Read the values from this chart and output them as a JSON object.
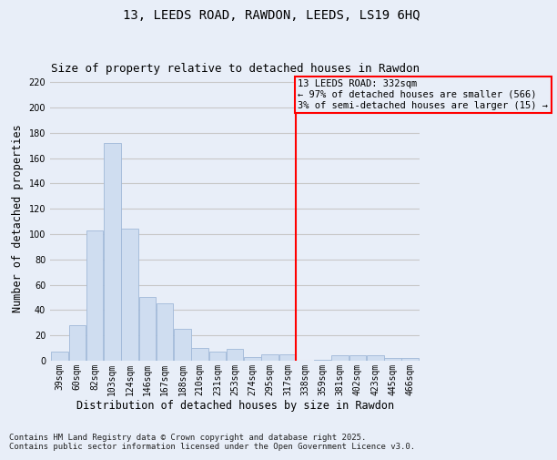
{
  "title1": "13, LEEDS ROAD, RAWDON, LEEDS, LS19 6HQ",
  "title2": "Size of property relative to detached houses in Rawdon",
  "xlabel": "Distribution of detached houses by size in Rawdon",
  "ylabel": "Number of detached properties",
  "footer": "Contains HM Land Registry data © Crown copyright and database right 2025.\nContains public sector information licensed under the Open Government Licence v3.0.",
  "bin_labels": [
    "39sqm",
    "60sqm",
    "82sqm",
    "103sqm",
    "124sqm",
    "146sqm",
    "167sqm",
    "188sqm",
    "210sqm",
    "231sqm",
    "253sqm",
    "274sqm",
    "295sqm",
    "317sqm",
    "338sqm",
    "359sqm",
    "381sqm",
    "402sqm",
    "423sqm",
    "445sqm",
    "466sqm"
  ],
  "bar_heights": [
    7,
    28,
    103,
    172,
    104,
    50,
    45,
    25,
    10,
    7,
    9,
    3,
    5,
    5,
    0,
    1,
    4,
    4,
    4,
    2,
    2
  ],
  "bar_color": "#cfddf0",
  "bar_edge_color": "#a0b8d8",
  "bin_width": 21,
  "property_value": 332,
  "property_line_color": "red",
  "annotation_line1": "13 LEEDS ROAD: 332sqm",
  "annotation_line2": "← 97% of detached houses are smaller (566)",
  "annotation_line3": "3% of semi-detached houses are larger (15) →",
  "annotation_box_color": "red",
  "ylim": [
    0,
    225
  ],
  "yticks": [
    0,
    20,
    40,
    60,
    80,
    100,
    120,
    140,
    160,
    180,
    200,
    220
  ],
  "background_color": "#e8eef8",
  "grid_color": "#c8c8c8",
  "title_fontsize": 10,
  "subtitle_fontsize": 9,
  "label_fontsize": 8.5,
  "tick_fontsize": 7,
  "footer_fontsize": 6.5,
  "annotation_fontsize": 7.5
}
